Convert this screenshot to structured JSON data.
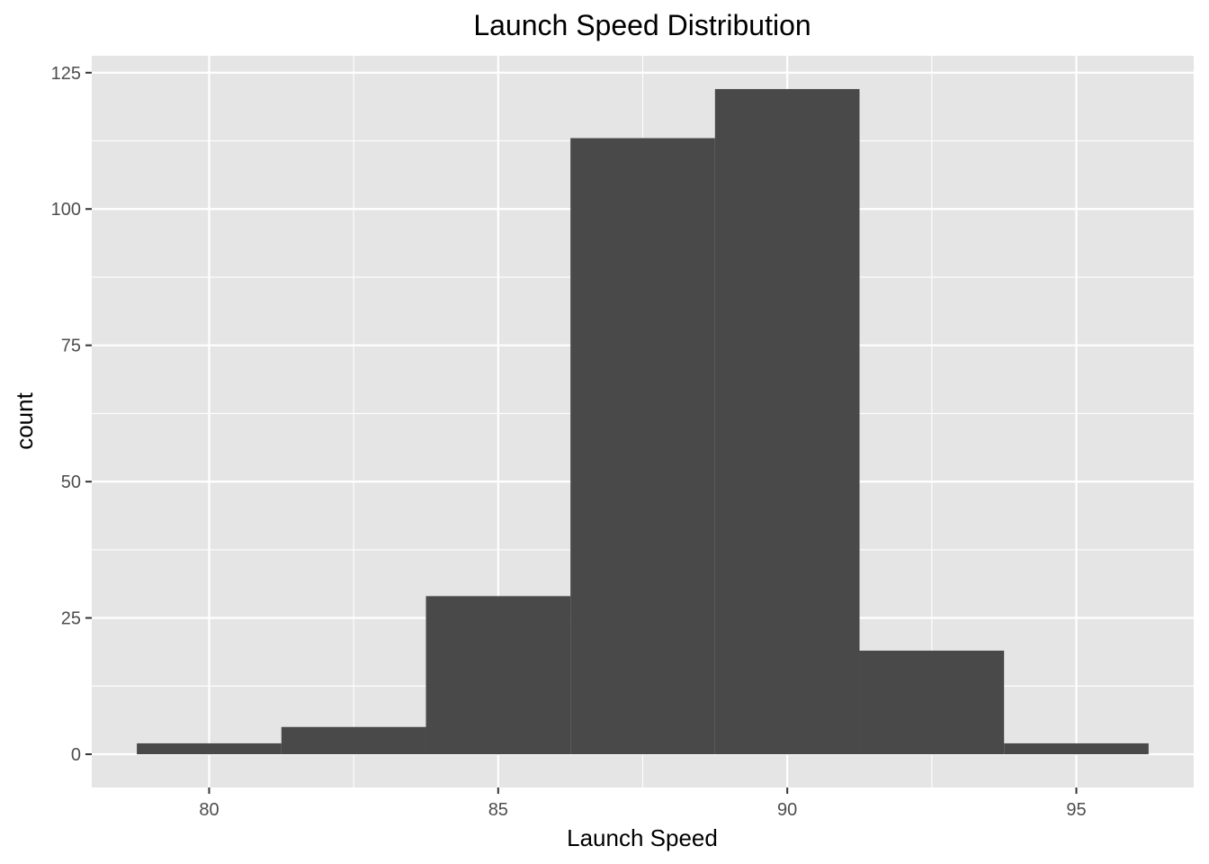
{
  "chart_data": {
    "type": "bar",
    "title": "Launch Speed Distribution",
    "xlabel": "Launch Speed",
    "ylabel": "count",
    "histogram": true,
    "bins": [
      {
        "x0": 78.75,
        "x1": 81.25,
        "count": 2
      },
      {
        "x0": 81.25,
        "x1": 83.75,
        "count": 5
      },
      {
        "x0": 83.75,
        "x1": 86.25,
        "count": 29
      },
      {
        "x0": 86.25,
        "x1": 88.75,
        "count": 113
      },
      {
        "x0": 88.75,
        "x1": 91.25,
        "count": 122
      },
      {
        "x0": 91.25,
        "x1": 93.75,
        "count": 19
      },
      {
        "x0": 93.75,
        "x1": 96.25,
        "count": 2
      }
    ],
    "xlim": [
      77.97,
      97.03
    ],
    "ylim": [
      -6.1,
      128.1
    ],
    "xticks": [
      80,
      85,
      90,
      95
    ],
    "xtick_labels": [
      "80",
      "85",
      "90",
      "95"
    ],
    "yticks": [
      0,
      25,
      50,
      75,
      100,
      125
    ],
    "ytick_labels": [
      "0",
      "25",
      "50",
      "75",
      "100",
      "125"
    ],
    "grid": true,
    "colors": {
      "panel_background": "#e5e5e5",
      "grid_major": "#ffffff",
      "bar_fill": "#494949",
      "tick_mark": "#333333"
    }
  }
}
